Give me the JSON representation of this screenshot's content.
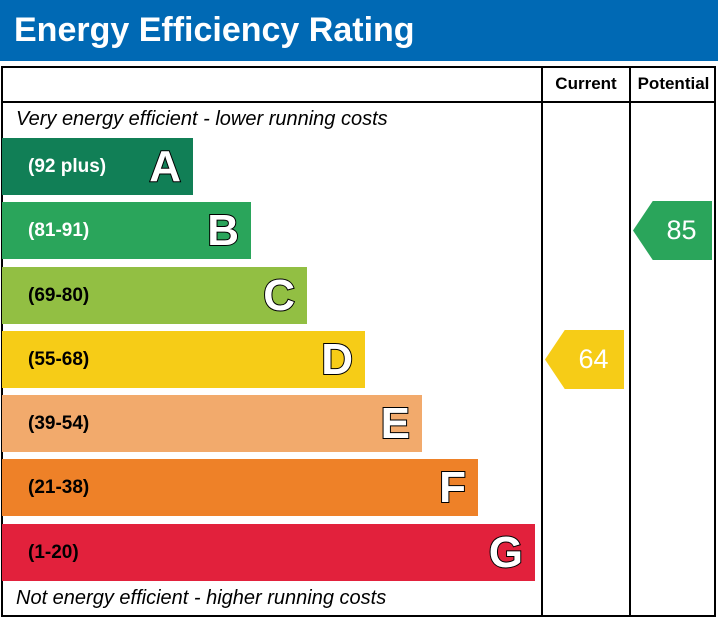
{
  "title": "Energy Efficiency Rating",
  "columns": {
    "current": "Current",
    "potential": "Potential"
  },
  "top_note": "Very energy efficient - lower running costs",
  "bottom_note": "Not energy efficient - higher running costs",
  "chart_data": {
    "type": "bar",
    "bands": [
      {
        "letter": "A",
        "range": "(92 plus)",
        "color": "#117f56"
      },
      {
        "letter": "B",
        "range": "(81-91)",
        "color": "#2aa55b"
      },
      {
        "letter": "C",
        "range": "(69-80)",
        "color": "#92bf43"
      },
      {
        "letter": "D",
        "range": "(55-68)",
        "color": "#f6cc17"
      },
      {
        "letter": "E",
        "range": "(39-54)",
        "color": "#f2aa6c"
      },
      {
        "letter": "F",
        "range": "(21-38)",
        "color": "#ee8128"
      },
      {
        "letter": "G",
        "range": "(1-20)",
        "color": "#e2213c"
      }
    ],
    "current": {
      "value": "64",
      "band": "D",
      "color": "#f6cc17"
    },
    "potential": {
      "value": "85",
      "band": "B",
      "color": "#2aa55b"
    }
  }
}
